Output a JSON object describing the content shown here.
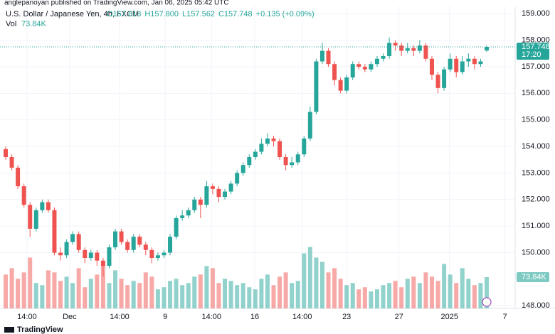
{
  "header": "anglepanoyan published on TradingView.com, Jan 06, 2025 05:42 UTC",
  "footer": "TradingView",
  "chart_data": {
    "type": "candlestick",
    "title": "U.S. Dollar / Japanese Yen, 4h, FXCM",
    "ohlc_legend": [
      "O157.613",
      "H157.800",
      "L157.562",
      "C157.748",
      "+0.135 (+0.09%)"
    ],
    "volume_title": "Vol",
    "volume_legend": "73.84K",
    "up_color": "#26a69a",
    "down_color": "#ef5350",
    "open": [
      153.9,
      153.6,
      153.2,
      152.5,
      151.8,
      150.9,
      151.6,
      151.9,
      151.6,
      150.0,
      149.9,
      150.4,
      150.7,
      150.1,
      149.8,
      150.0,
      149.7,
      149.5,
      150.2,
      150.8,
      150.4,
      150.1,
      150.6,
      150.3,
      150.1,
      149.8,
      149.9,
      150.0,
      150.6,
      151.3,
      151.4,
      151.6,
      152.0,
      151.8,
      152.5,
      152.4,
      152.1,
      152.3,
      152.6,
      153.0,
      153.3,
      153.6,
      153.8,
      154.1,
      154.3,
      154.2,
      153.6,
      153.3,
      153.4,
      153.7,
      154.3,
      155.3,
      157.2,
      157.6,
      157.1,
      156.5,
      156.1,
      156.6,
      157.1,
      157.0,
      156.9,
      157.1,
      157.3,
      157.4,
      157.9,
      157.8,
      157.6,
      157.7,
      157.6,
      157.8,
      157.3,
      156.7,
      156.2,
      156.9,
      157.3,
      156.8,
      157.2,
      157.3,
      157.1,
      157.613
    ],
    "high": [
      154.0,
      153.7,
      153.3,
      152.6,
      151.9,
      151.7,
      152.0,
      152.0,
      151.7,
      150.2,
      150.5,
      150.8,
      150.8,
      150.2,
      150.1,
      150.1,
      149.8,
      150.3,
      150.9,
      150.9,
      150.5,
      150.7,
      150.7,
      150.4,
      150.2,
      150.0,
      150.1,
      150.7,
      151.4,
      151.6,
      151.7,
      152.1,
      152.1,
      152.7,
      152.6,
      152.5,
      152.4,
      152.7,
      153.1,
      153.4,
      153.7,
      153.9,
      154.3,
      154.5,
      154.4,
      154.3,
      153.7,
      153.6,
      153.8,
      154.4,
      155.5,
      157.3,
      157.9,
      157.7,
      157.2,
      156.6,
      156.7,
      157.2,
      157.2,
      157.1,
      157.2,
      157.4,
      157.5,
      158.1,
      158.0,
      157.9,
      157.9,
      157.8,
      158.0,
      157.9,
      157.4,
      156.8,
      157.0,
      157.5,
      157.4,
      157.4,
      157.5,
      157.4,
      157.3,
      157.8
    ],
    "low": [
      153.5,
      153.1,
      152.4,
      151.7,
      150.6,
      150.8,
      151.5,
      151.5,
      149.9,
      149.7,
      149.8,
      150.3,
      150.0,
      149.6,
      149.7,
      149.5,
      149.1,
      149.4,
      150.1,
      150.3,
      150.0,
      150.0,
      150.2,
      149.9,
      149.6,
      149.7,
      149.8,
      149.9,
      150.5,
      151.2,
      151.3,
      151.5,
      151.3,
      151.7,
      152.2,
      151.9,
      152.0,
      152.2,
      152.5,
      152.9,
      153.2,
      153.5,
      153.7,
      154.0,
      154.0,
      153.5,
      153.1,
      153.2,
      153.3,
      153.6,
      154.2,
      155.2,
      157.1,
      157.0,
      156.3,
      156.0,
      156.0,
      156.5,
      156.9,
      156.8,
      156.8,
      157.0,
      157.2,
      157.3,
      157.6,
      157.4,
      157.5,
      157.4,
      157.5,
      157.2,
      156.5,
      156.0,
      156.1,
      156.8,
      156.6,
      156.7,
      157.0,
      156.9,
      157.0,
      157.562
    ],
    "close": [
      153.6,
      153.2,
      152.5,
      151.8,
      150.9,
      151.6,
      151.9,
      151.6,
      150.0,
      149.9,
      150.4,
      150.7,
      150.1,
      149.8,
      150.0,
      149.7,
      149.5,
      150.2,
      150.8,
      150.4,
      150.1,
      150.6,
      150.3,
      150.1,
      149.8,
      149.9,
      150.0,
      150.6,
      151.3,
      151.4,
      151.6,
      152.0,
      151.8,
      152.5,
      152.4,
      152.1,
      152.3,
      152.6,
      153.0,
      153.3,
      153.6,
      153.8,
      154.1,
      154.3,
      154.2,
      153.6,
      153.3,
      153.4,
      153.7,
      154.3,
      155.3,
      157.2,
      157.6,
      157.1,
      156.5,
      156.1,
      156.6,
      157.1,
      157.0,
      156.9,
      157.1,
      157.3,
      157.4,
      157.9,
      157.8,
      157.6,
      157.7,
      157.6,
      157.8,
      157.3,
      156.7,
      156.2,
      156.9,
      157.3,
      156.8,
      157.2,
      157.3,
      157.1,
      157.2,
      157.748
    ],
    "volume": [
      80000,
      95000,
      70000,
      85000,
      120000,
      60000,
      55000,
      90000,
      85000,
      65000,
      75000,
      60000,
      95000,
      50000,
      70000,
      80000,
      110000,
      60000,
      90000,
      70000,
      55000,
      65000,
      60000,
      85000,
      75000,
      45000,
      50000,
      65000,
      70000,
      55000,
      60000,
      75000,
      80000,
      100000,
      95000,
      60000,
      70000,
      65000,
      55000,
      60000,
      50000,
      45000,
      70000,
      80000,
      55000,
      75000,
      85000,
      60000,
      65000,
      130000,
      145000,
      120000,
      110000,
      85000,
      95000,
      70000,
      55000,
      60000,
      45000,
      50000,
      40000,
      45000,
      55000,
      60000,
      65000,
      50000,
      70000,
      75000,
      60000,
      85000,
      75000,
      65000,
      105000,
      80000,
      60000,
      95000,
      70000,
      55000,
      60000,
      73840
    ],
    "volume_value_labels": {
      "79": "73.84K"
    },
    "last_price_label": "157.748",
    "countdown": "17:20",
    "ylim": [
      147.9,
      159.3
    ],
    "yticks": [
      {
        "value": 148,
        "label": "148.000"
      },
      {
        "value": 150,
        "label": "150.000"
      },
      {
        "value": 151,
        "label": "151.000"
      },
      {
        "value": 152,
        "label": "152.000"
      },
      {
        "value": 153,
        "label": "153.000"
      },
      {
        "value": 154,
        "label": "154.000"
      },
      {
        "value": 155,
        "label": "155.000"
      },
      {
        "value": 156,
        "label": "156.000"
      },
      {
        "value": 157,
        "label": "157.000"
      },
      {
        "value": 158,
        "label": "158.000"
      },
      {
        "value": 159,
        "label": "159.000"
      }
    ],
    "xticks": [
      {
        "value": 3.5,
        "label": "14:00"
      },
      {
        "value": 10.5,
        "label": "Dec"
      },
      {
        "value": 18.7,
        "label": "14:00"
      },
      {
        "value": 26.2,
        "label": "9"
      },
      {
        "value": 33.8,
        "label": "14:00"
      },
      {
        "value": 40.9,
        "label": "16"
      },
      {
        "value": 48.7,
        "label": "14:00"
      },
      {
        "value": 56,
        "label": "23"
      },
      {
        "value": 64.6,
        "label": "27"
      },
      {
        "value": 72.9,
        "label": "2025"
      },
      {
        "value": 82,
        "label": "7"
      }
    ],
    "grid": true
  }
}
